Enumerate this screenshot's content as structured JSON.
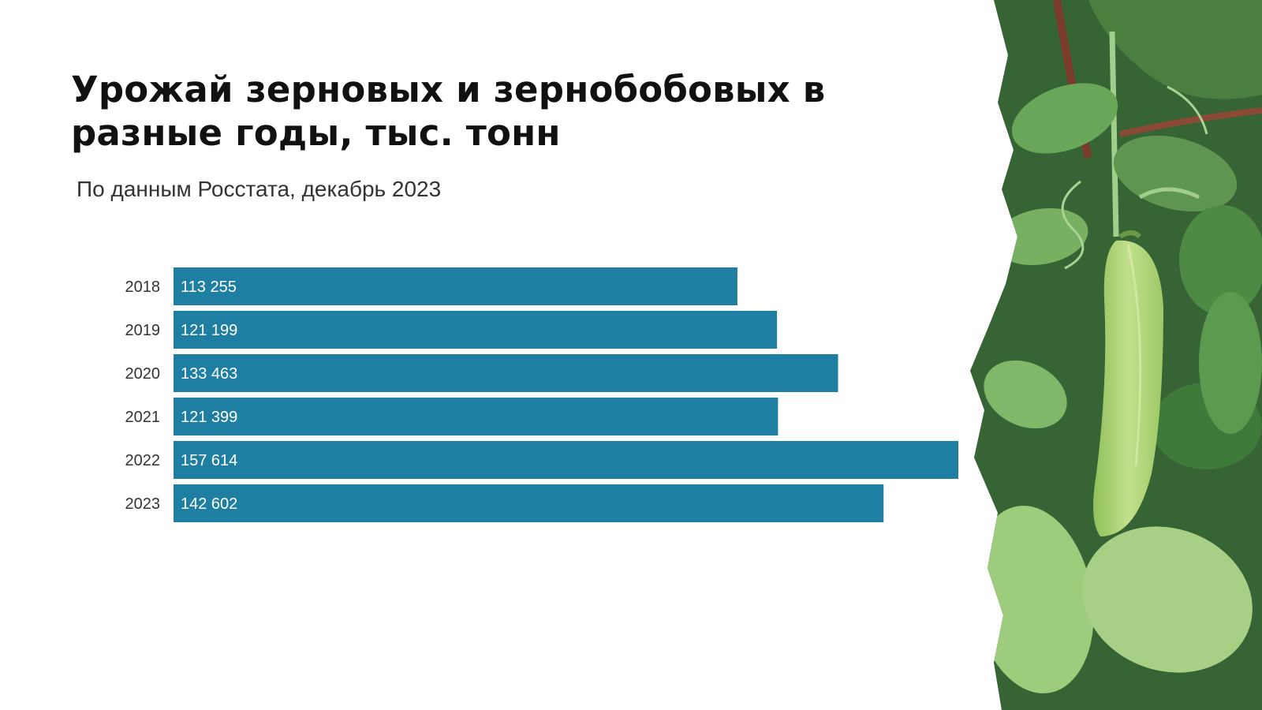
{
  "header": {
    "title": "Урожай зерновых и зернобобовых в разные годы, тыс. тонн",
    "subtitle": "По данным Росстата, декабрь 2023"
  },
  "chart_data": {
    "type": "bar",
    "orientation": "horizontal",
    "categories": [
      "2018",
      "2019",
      "2020",
      "2021",
      "2022",
      "2023"
    ],
    "values": [
      113255,
      121199,
      133463,
      121399,
      157614,
      142602
    ],
    "value_labels": [
      "113 255",
      "121 199",
      "133 463",
      "121 399",
      "157 614",
      "142 602"
    ],
    "xlim": [
      0,
      157614
    ],
    "grid": false,
    "legend": "none",
    "bar_color": "#1f7fa3",
    "label_color": "#ffffff",
    "category_color": "#333333"
  },
  "decor": {
    "image": "pea-plant-photo",
    "leaf_dark": "#2f5a2e",
    "leaf_mid": "#5e9550",
    "leaf_light": "#a7cf85",
    "pod": "#b5da7c"
  }
}
